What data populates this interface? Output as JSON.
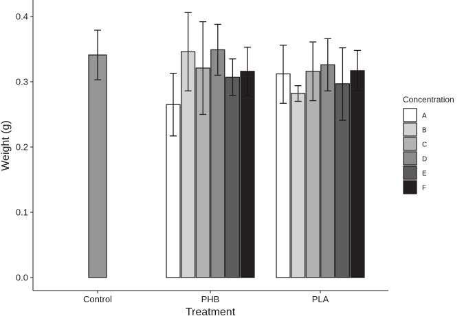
{
  "chart_data": {
    "type": "bar",
    "xlabel": "Treatment",
    "ylabel": "Weight (g)",
    "ylim": [
      0,
      0.42
    ],
    "yticks": [
      "0.0",
      "0.1",
      "0.2",
      "0.3",
      "0.4"
    ],
    "ytick_values": [
      0.0,
      0.1,
      0.2,
      0.3,
      0.4
    ],
    "categories": [
      "Control",
      "PHB",
      "PLA"
    ],
    "grid": false,
    "legend": {
      "title": "Concentration",
      "placement": "right",
      "entries": [
        {
          "label": "A",
          "color": "#ffffff"
        },
        {
          "label": "B",
          "color": "#d3d3d3"
        },
        {
          "label": "C",
          "color": "#b2b2b2"
        },
        {
          "label": "D",
          "color": "#8c8c8c"
        },
        {
          "label": "E",
          "color": "#5c5c5c"
        },
        {
          "label": "F",
          "color": "#231f20"
        }
      ]
    },
    "groups": [
      {
        "category": "Control",
        "bars": [
          {
            "color": "#969696",
            "value": 0.341,
            "err_low": 0.303,
            "err_high": 0.379
          }
        ]
      },
      {
        "category": "PHB",
        "bars": [
          {
            "series": "A",
            "value": 0.265,
            "err_low": 0.217,
            "err_high": 0.313
          },
          {
            "series": "B",
            "value": 0.346,
            "err_low": 0.286,
            "err_high": 0.406
          },
          {
            "series": "C",
            "value": 0.321,
            "err_low": 0.25,
            "err_high": 0.392
          },
          {
            "series": "D",
            "value": 0.349,
            "err_low": 0.31,
            "err_high": 0.388
          },
          {
            "series": "E",
            "value": 0.307,
            "err_low": 0.279,
            "err_high": 0.335
          },
          {
            "series": "F",
            "value": 0.316,
            "err_low": 0.279,
            "err_high": 0.353
          }
        ]
      },
      {
        "category": "PLA",
        "bars": [
          {
            "series": "A",
            "value": 0.312,
            "err_low": 0.267,
            "err_high": 0.356
          },
          {
            "series": "B",
            "value": 0.282,
            "err_low": 0.27,
            "err_high": 0.294
          },
          {
            "series": "C",
            "value": 0.316,
            "err_low": 0.271,
            "err_high": 0.361
          },
          {
            "series": "D",
            "value": 0.326,
            "err_low": 0.286,
            "err_high": 0.366
          },
          {
            "series": "E",
            "value": 0.297,
            "err_low": 0.241,
            "err_high": 0.352
          },
          {
            "series": "F",
            "value": 0.317,
            "err_low": 0.286,
            "err_high": 0.348
          }
        ]
      }
    ]
  }
}
